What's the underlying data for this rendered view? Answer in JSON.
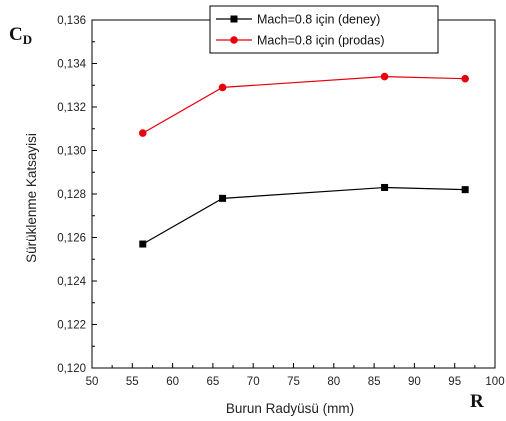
{
  "chart_data": {
    "type": "line",
    "xlabel": "Burun Radyüsü (mm)",
    "ylabel": "Sürüklenme Katsayisi",
    "corner_y_label": "C",
    "corner_y_sub": "D",
    "corner_x_label": "R",
    "xlim": [
      50,
      100
    ],
    "ylim": [
      0.12,
      0.136
    ],
    "xticks": [
      "50",
      "55",
      "60",
      "65",
      "70",
      "75",
      "80",
      "85",
      "90",
      "95",
      "100"
    ],
    "xtick_values": [
      50,
      55,
      60,
      65,
      70,
      75,
      80,
      85,
      90,
      95,
      100
    ],
    "yticks": [
      "0,120",
      "0,122",
      "0,124",
      "0,126",
      "0,128",
      "0,130",
      "0,132",
      "0,134",
      "0,136"
    ],
    "ytick_values": [
      0.12,
      0.122,
      0.124,
      0.126,
      0.128,
      0.13,
      0.132,
      0.134,
      0.136
    ],
    "grid": false,
    "legend_position": "top-right",
    "series": [
      {
        "name": "Mach=0.8 için (deney)",
        "color": "#000000",
        "marker": "square",
        "x": [
          56.3,
          66.2,
          86.3,
          96.3
        ],
        "y": [
          0.1257,
          0.1278,
          0.1283,
          0.1282
        ]
      },
      {
        "name": "Mach=0.8 için (prodas)",
        "color": "#e8000b",
        "marker": "circle",
        "x": [
          56.3,
          66.2,
          86.3,
          96.3
        ],
        "y": [
          0.1308,
          0.1329,
          0.1334,
          0.1333
        ]
      }
    ]
  }
}
